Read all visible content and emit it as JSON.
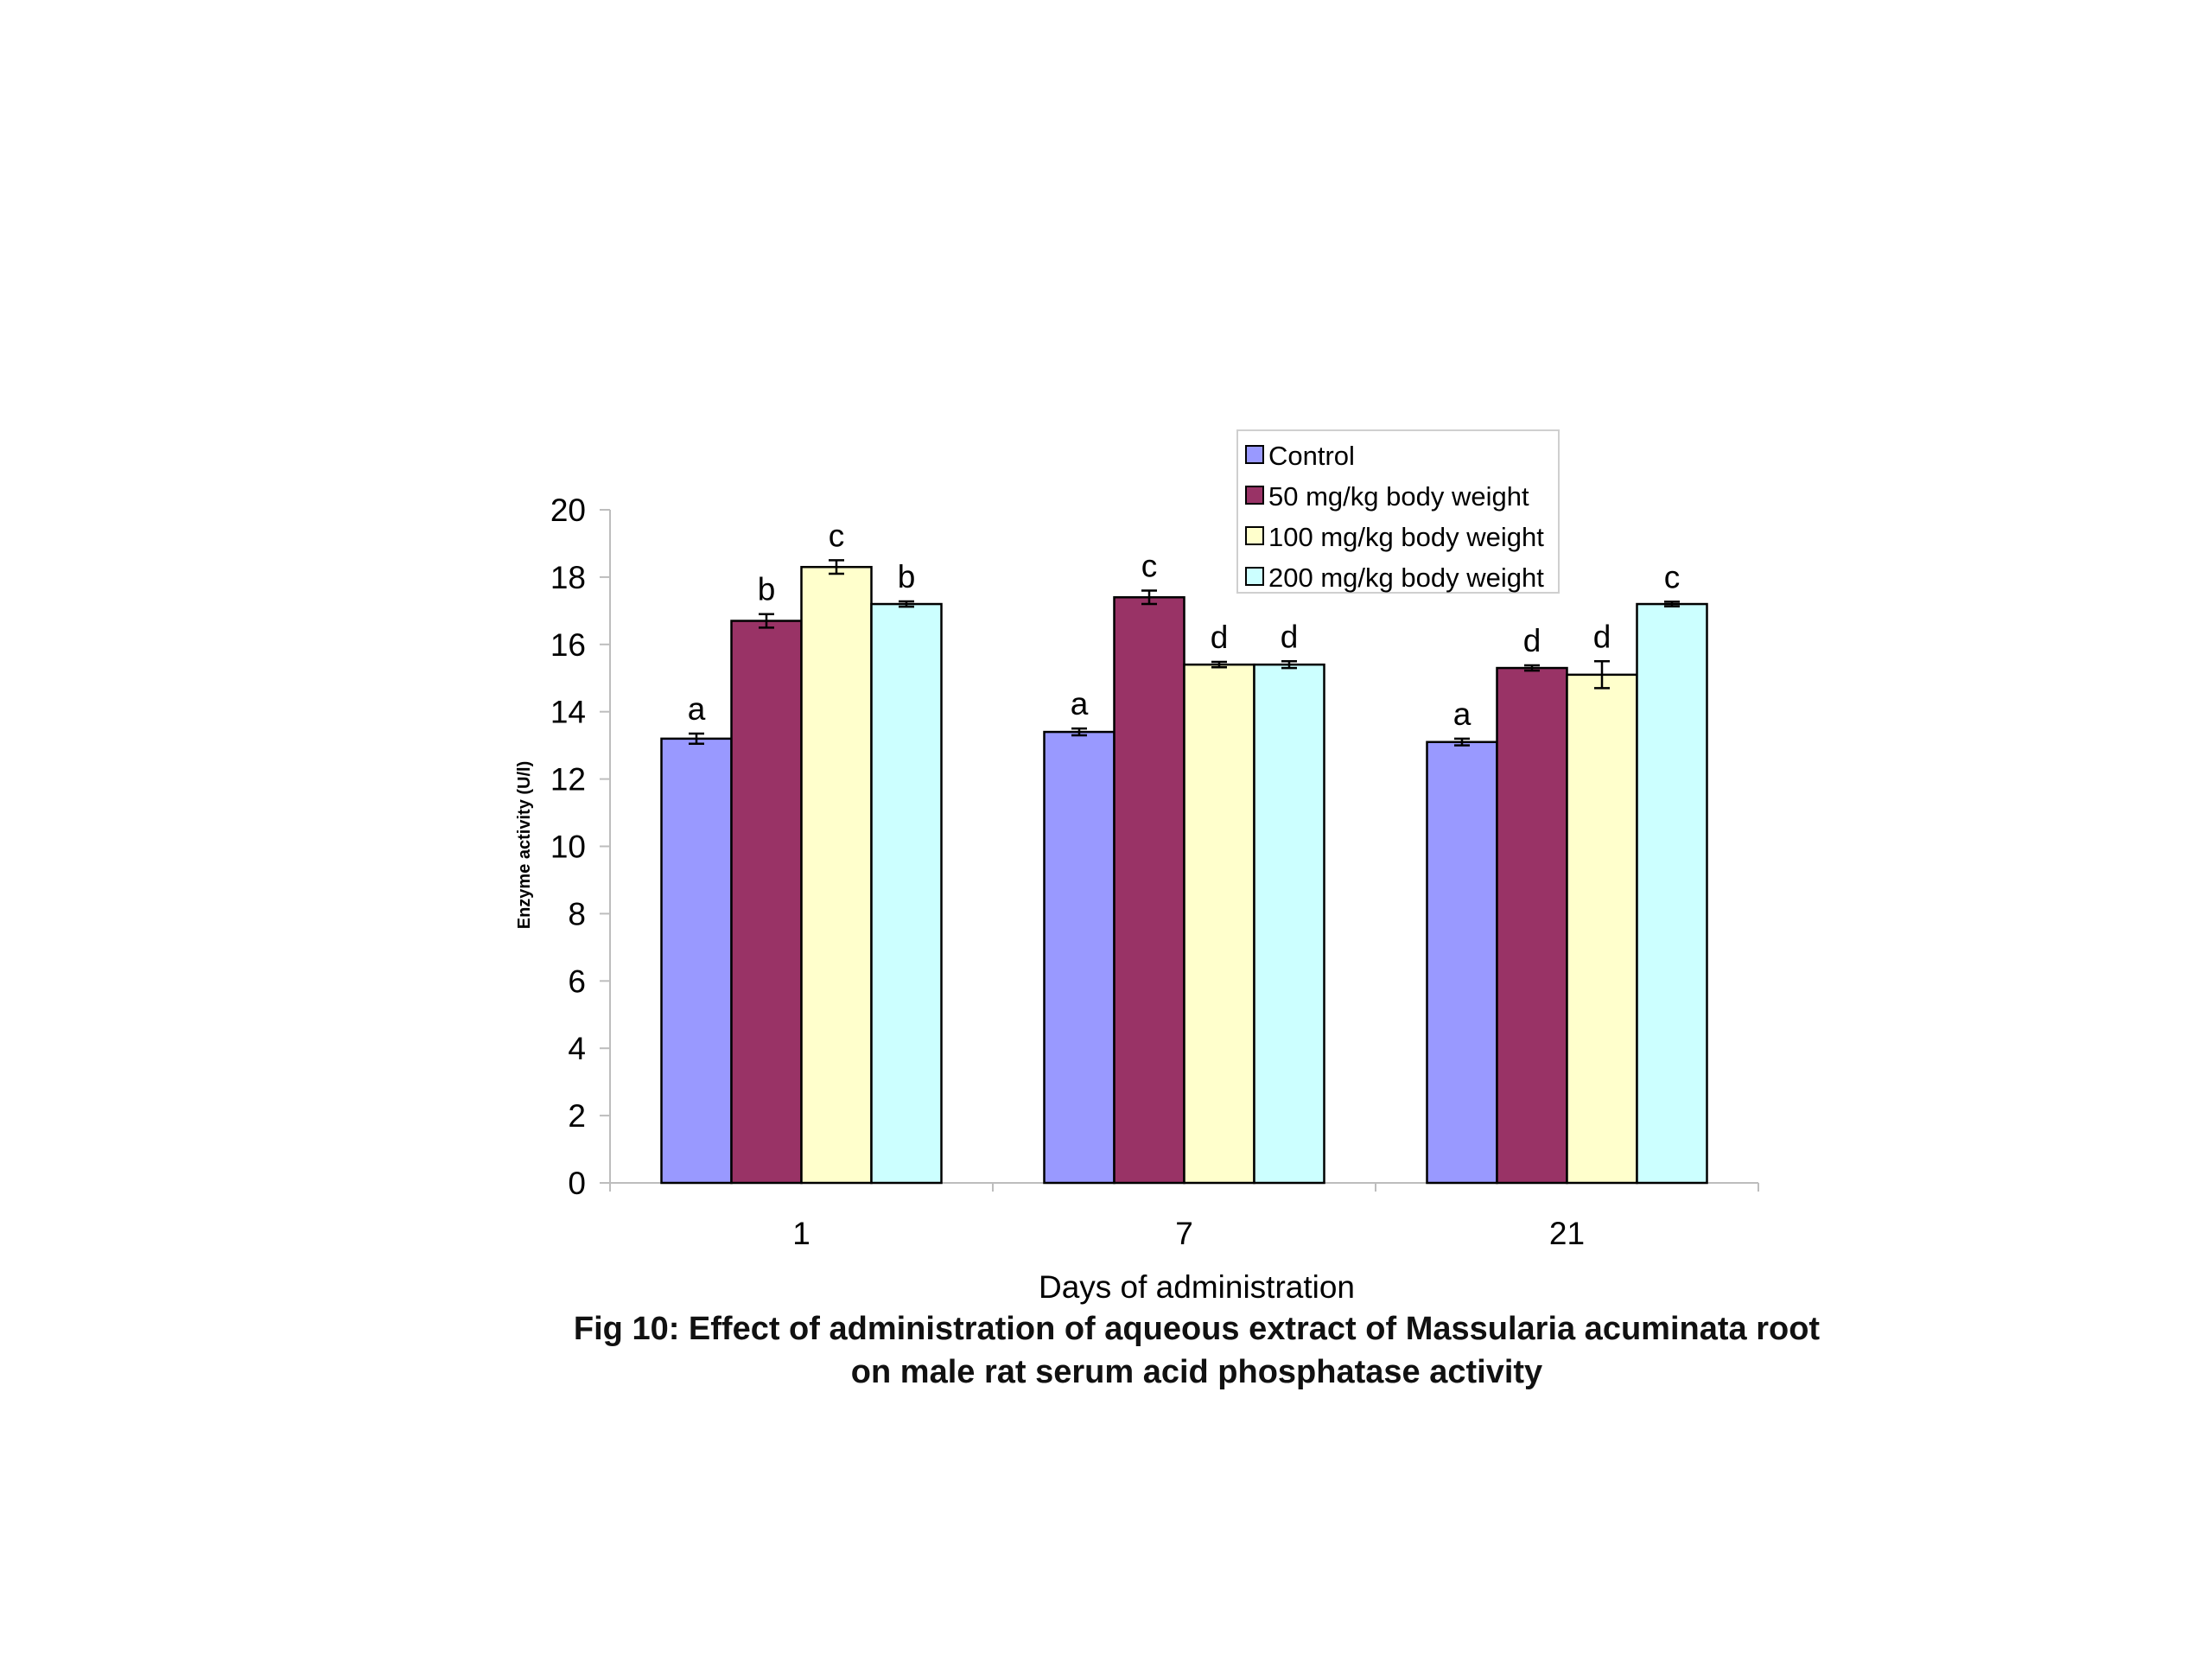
{
  "chart_data": {
    "type": "bar",
    "categories": [
      "1",
      "7",
      "21"
    ],
    "xlabel": "Days of administration",
    "ylabel": "Enzyme activity (U/l)",
    "ylim": [
      0,
      20
    ],
    "yticks": [
      "0",
      "2",
      "4",
      "6",
      "8",
      "10",
      "12",
      "14",
      "16",
      "18",
      "20"
    ],
    "grid": false,
    "legend_position": "top-right",
    "series": [
      {
        "name": "Control",
        "color": "#9999ff",
        "values": [
          13.2,
          13.4,
          13.1
        ],
        "errors": [
          0.15,
          0.1,
          0.1
        ],
        "labels": [
          "a",
          "a",
          "a"
        ]
      },
      {
        "name": "50 mg/kg body weight",
        "color": "#993366",
        "values": [
          16.7,
          17.4,
          15.3
        ],
        "errors": [
          0.2,
          0.2,
          0.08
        ],
        "labels": [
          "b",
          "c",
          "d"
        ]
      },
      {
        "name": "100 mg/kg body weight",
        "color": "#ffffcc",
        "values": [
          18.3,
          15.4,
          15.1
        ],
        "errors": [
          0.2,
          0.08,
          0.4
        ],
        "labels": [
          "c",
          "d",
          "d"
        ]
      },
      {
        "name": "200 mg/kg body weight",
        "color": "#ccffff",
        "values": [
          17.2,
          15.4,
          17.2
        ],
        "errors": [
          0.08,
          0.1,
          0.07
        ],
        "labels": [
          "b",
          "d",
          "c"
        ]
      }
    ]
  },
  "caption": {
    "line1": "Fig 10: Effect of administration of aqueous extract of Massularia acuminata root",
    "line2": "on male rat serum acid phosphatase activity"
  }
}
